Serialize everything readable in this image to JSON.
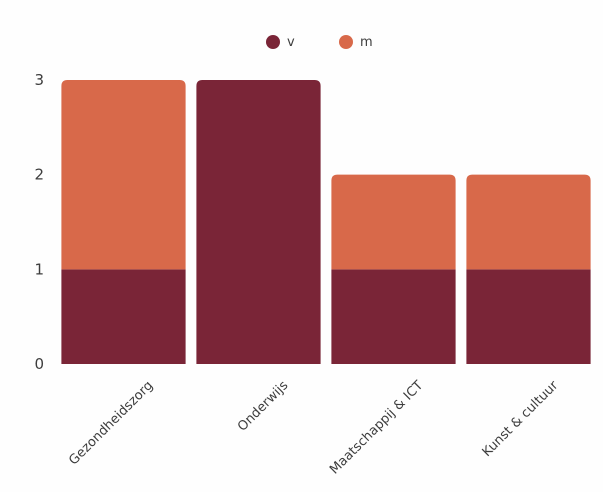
{
  "chart_data": {
    "type": "bar",
    "stacked": true,
    "categories": [
      "Gezondheidszorg",
      "Onderwijs",
      "Maatschappij & ICT",
      "Kunst & cultuur"
    ],
    "series": [
      {
        "name": "v",
        "color": "#7a2537",
        "values": [
          1,
          3,
          1,
          1
        ]
      },
      {
        "name": "m",
        "color": "#d8694a",
        "values": [
          2,
          0,
          1,
          1
        ]
      }
    ],
    "yticks": [
      "0",
      "1",
      "2",
      "3"
    ],
    "ylim": [
      0,
      3
    ],
    "legend_position": "top-center",
    "grid": false
  }
}
